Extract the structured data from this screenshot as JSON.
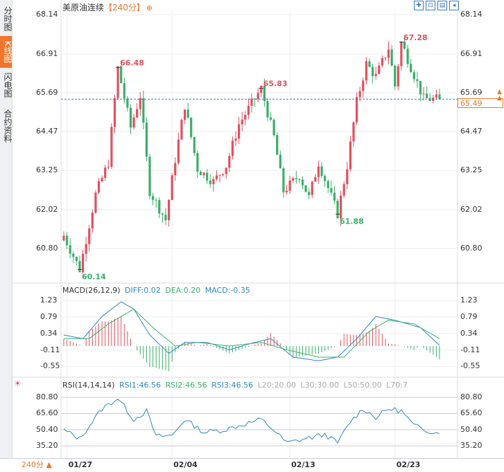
{
  "sidebar": {
    "tabs": [
      {
        "label": "分时图",
        "active": false
      },
      {
        "label": "K线图",
        "active": true
      },
      {
        "label": "闪电图",
        "active": false
      },
      {
        "label": "合约资料",
        "active": false
      }
    ]
  },
  "header": {
    "title": "美原油连续",
    "period": "【240分】",
    "zoom_icon": "zoom-in-icon"
  },
  "toolbar": {
    "buttons": [
      "crosshair-icon",
      "fit-icon",
      "chart-type-icon",
      "back-icon"
    ]
  },
  "bottom": {
    "period_label": "240分 ▲",
    "dates": [
      "01/27",
      "02/04",
      "02/13",
      "02/23"
    ]
  },
  "colors": {
    "up": "#e0505f",
    "down": "#3aae6a",
    "accent": "#f0762c",
    "price_line": "#3a78c3",
    "diff": "#2d87c9",
    "dea": "#3aae6a",
    "rsi": "#2d87c9"
  },
  "price_panel": {
    "y_ticks": [
      "68.14",
      "66.91",
      "65.69",
      "64.47",
      "63.25",
      "62.02",
      "60.80"
    ],
    "current_price": "65.49",
    "annotations": [
      {
        "label": "66.48",
        "type": "high"
      },
      {
        "label": "65.83",
        "type": "high"
      },
      {
        "label": "67.28",
        "type": "high"
      },
      {
        "label": "60.14",
        "type": "low"
      },
      {
        "label": "61.88",
        "type": "low"
      }
    ]
  },
  "macd_panel": {
    "header": {
      "name": "MACD(26,12,9)",
      "diff": "DIFF:0.02",
      "dea": "DEA:0.20",
      "macd": "MACD:-0.35"
    },
    "y_ticks": [
      "1.23",
      "0.79",
      "0.34",
      "-0.11",
      "-0.55"
    ]
  },
  "rsi_panel": {
    "header": {
      "name": "RSI(14,14,14)",
      "rsi1": "RSI1:46.56",
      "rsi2": "RSI2:46.56",
      "rsi3": "RSI3:46.56",
      "l20": "L20:20.00",
      "l30": "L30:30.00",
      "l50": "L50:50.00",
      "l70": "L70:7"
    },
    "y_ticks": [
      "80.80",
      "65.60",
      "50.40",
      "35.20"
    ]
  },
  "chart_data": {
    "type": "candlestick",
    "title": "美原油连续【240分】",
    "ylim": [
      59.8,
      68.3
    ],
    "x_dates": [
      "01/27",
      "02/04",
      "02/13",
      "02/23"
    ],
    "x_date_index": [
      1,
      34,
      71,
      104
    ],
    "anchors": [
      {
        "i": 0,
        "v": 61.2
      },
      {
        "i": 5,
        "v": 60.14
      },
      {
        "i": 10,
        "v": 62.5
      },
      {
        "i": 14,
        "v": 63.5
      },
      {
        "i": 17,
        "v": 66.48
      },
      {
        "i": 21,
        "v": 64.6
      },
      {
        "i": 24,
        "v": 65.6
      },
      {
        "i": 27,
        "v": 62.6
      },
      {
        "i": 32,
        "v": 61.7
      },
      {
        "i": 35,
        "v": 63.6
      },
      {
        "i": 38,
        "v": 65.3
      },
      {
        "i": 42,
        "v": 63.3
      },
      {
        "i": 47,
        "v": 62.9
      },
      {
        "i": 51,
        "v": 63.4
      },
      {
        "i": 55,
        "v": 64.7
      },
      {
        "i": 62,
        "v": 65.83
      },
      {
        "i": 66,
        "v": 64.3
      },
      {
        "i": 69,
        "v": 62.6
      },
      {
        "i": 74,
        "v": 63.1
      },
      {
        "i": 77,
        "v": 62.4
      },
      {
        "i": 80,
        "v": 63.5
      },
      {
        "i": 83,
        "v": 62.7
      },
      {
        "i": 86,
        "v": 61.88
      },
      {
        "i": 89,
        "v": 63.4
      },
      {
        "i": 92,
        "v": 65.4
      },
      {
        "i": 95,
        "v": 66.6
      },
      {
        "i": 98,
        "v": 66.2
      },
      {
        "i": 102,
        "v": 67.1
      },
      {
        "i": 104,
        "v": 65.9
      },
      {
        "i": 106,
        "v": 67.28
      },
      {
        "i": 109,
        "v": 66.5
      },
      {
        "i": 113,
        "v": 65.5
      },
      {
        "i": 118,
        "v": 65.49
      }
    ],
    "highs": [
      {
        "index": 17,
        "value": 66.48
      },
      {
        "index": 62,
        "value": 65.83
      },
      {
        "index": 106,
        "value": 67.28
      }
    ],
    "lows": [
      {
        "index": 5,
        "value": 60.14
      },
      {
        "index": 86,
        "value": 61.88
      }
    ],
    "last_price": 65.49,
    "macd": {
      "ylim": [
        -0.75,
        1.35
      ],
      "diff_anchors": [
        {
          "i": 0,
          "v": 0.3
        },
        {
          "i": 6,
          "v": 0.2
        },
        {
          "i": 12,
          "v": 0.8
        },
        {
          "i": 18,
          "v": 1.2
        },
        {
          "i": 22,
          "v": 1.0
        },
        {
          "i": 27,
          "v": 0.3
        },
        {
          "i": 33,
          "v": -0.2
        },
        {
          "i": 38,
          "v": 0.1
        },
        {
          "i": 45,
          "v": 0.1
        },
        {
          "i": 52,
          "v": -0.1
        },
        {
          "i": 60,
          "v": 0.1
        },
        {
          "i": 65,
          "v": 0.2
        },
        {
          "i": 72,
          "v": -0.3
        },
        {
          "i": 80,
          "v": -0.4
        },
        {
          "i": 86,
          "v": -0.3
        },
        {
          "i": 92,
          "v": 0.2
        },
        {
          "i": 98,
          "v": 0.8
        },
        {
          "i": 104,
          "v": 0.7
        },
        {
          "i": 112,
          "v": 0.5
        },
        {
          "i": 118,
          "v": 0.02
        }
      ],
      "dea_anchors": [
        {
          "i": 0,
          "v": 0.2
        },
        {
          "i": 8,
          "v": 0.2
        },
        {
          "i": 14,
          "v": 0.6
        },
        {
          "i": 22,
          "v": 1.0
        },
        {
          "i": 28,
          "v": 0.5
        },
        {
          "i": 35,
          "v": 0.0
        },
        {
          "i": 42,
          "v": 0.1
        },
        {
          "i": 52,
          "v": 0.0
        },
        {
          "i": 62,
          "v": 0.1
        },
        {
          "i": 70,
          "v": -0.1
        },
        {
          "i": 80,
          "v": -0.3
        },
        {
          "i": 88,
          "v": -0.3
        },
        {
          "i": 96,
          "v": 0.4
        },
        {
          "i": 102,
          "v": 0.7
        },
        {
          "i": 110,
          "v": 0.6
        },
        {
          "i": 118,
          "v": 0.2
        }
      ]
    },
    "rsi": {
      "ylim": [
        25,
        88
      ],
      "anchors": [
        {
          "i": 0,
          "v": 50
        },
        {
          "i": 5,
          "v": 42
        },
        {
          "i": 12,
          "v": 70
        },
        {
          "i": 17,
          "v": 80
        },
        {
          "i": 22,
          "v": 60
        },
        {
          "i": 26,
          "v": 68
        },
        {
          "i": 29,
          "v": 44
        },
        {
          "i": 34,
          "v": 45
        },
        {
          "i": 38,
          "v": 60
        },
        {
          "i": 44,
          "v": 48
        },
        {
          "i": 50,
          "v": 50
        },
        {
          "i": 56,
          "v": 55
        },
        {
          "i": 62,
          "v": 60
        },
        {
          "i": 66,
          "v": 50
        },
        {
          "i": 70,
          "v": 38
        },
        {
          "i": 76,
          "v": 42
        },
        {
          "i": 82,
          "v": 46
        },
        {
          "i": 86,
          "v": 38
        },
        {
          "i": 90,
          "v": 58
        },
        {
          "i": 94,
          "v": 70
        },
        {
          "i": 98,
          "v": 62
        },
        {
          "i": 102,
          "v": 70
        },
        {
          "i": 106,
          "v": 68
        },
        {
          "i": 110,
          "v": 54
        },
        {
          "i": 114,
          "v": 50
        },
        {
          "i": 118,
          "v": 46.56
        }
      ]
    }
  }
}
